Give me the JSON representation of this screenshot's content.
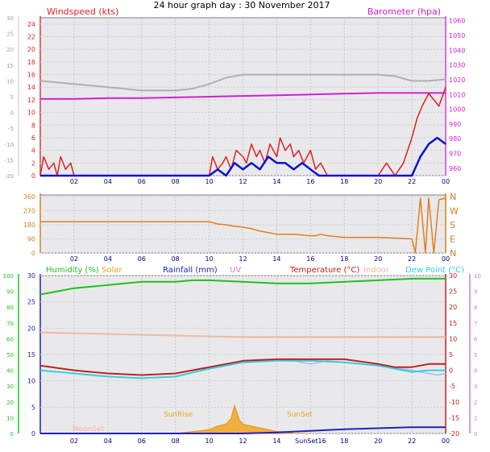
{
  "title": "24 hour graph day : 30 November 2017",
  "colors": {
    "wind": "#e02020",
    "gust": "#ff3030",
    "avgwind": "#1010d0",
    "baro": "#d020d0",
    "temp": "#c02020",
    "dew": "#30d0e0",
    "humidity": "#20c020",
    "solar": "#f0a020",
    "rain": "#2020c0",
    "uv": "#d080d0",
    "indoor": "#f0b8a0",
    "direction": "#e08020",
    "gray_series": "#b0b0b0"
  },
  "chart_data": [
    {
      "type": "line",
      "panel": "wind_baro",
      "title": "",
      "x_ticks": [
        "02",
        "04",
        "06",
        "08",
        "10",
        "12",
        "14",
        "16",
        "18",
        "20",
        "22",
        "00"
      ],
      "left_axis": {
        "label": "Windspeed (kts)",
        "ticks": [
          "0",
          "2",
          "4",
          "6",
          "8",
          "10",
          "12",
          "14",
          "16",
          "18",
          "20",
          "22",
          "24"
        ],
        "ylim": [
          0,
          25
        ]
      },
      "outer_left_axis": {
        "ticks": [
          "-20",
          "-15",
          "-10",
          "-5",
          "0",
          "5",
          "10",
          "15",
          "20",
          "25",
          "30"
        ],
        "ylim": [
          -20,
          30
        ]
      },
      "right_axis": {
        "label": "Barometer (hpa)",
        "ticks": [
          "960",
          "970",
          "980",
          "990",
          "1000",
          "1010",
          "1020",
          "1030",
          "1040",
          "1050",
          "1060"
        ],
        "ylim": [
          955,
          1062
        ]
      },
      "series": [
        {
          "name": "Barometer (hpa)",
          "axis": "right",
          "x": [
            0,
            2,
            4,
            6,
            8,
            10,
            12,
            14,
            16,
            18,
            20,
            22,
            24
          ],
          "values": [
            1007,
            1007,
            1007.5,
            1007.5,
            1008,
            1008.5,
            1009,
            1009.5,
            1010,
            1010.5,
            1011,
            1011,
            1011
          ]
        },
        {
          "name": "gray",
          "axis": "outer_left",
          "x": [
            0,
            2,
            4,
            6,
            8,
            9,
            10,
            11,
            12,
            14,
            16,
            18,
            20,
            21,
            22,
            23,
            24
          ],
          "values": [
            10,
            9,
            8,
            7,
            7,
            7.5,
            9,
            11,
            12,
            12,
            12,
            12,
            12,
            11.5,
            10,
            10,
            10.5
          ]
        },
        {
          "name": "Windspeed (kts)",
          "axis": "left",
          "x": [
            0,
            0.2,
            0.5,
            0.8,
            1,
            1.2,
            1.5,
            1.8,
            2,
            4,
            6,
            8,
            10,
            10.2,
            10.5,
            10.8,
            11,
            11.3,
            11.6,
            12,
            12.2,
            12.5,
            12.8,
            13,
            13.3,
            13.6,
            14,
            14.2,
            14.5,
            14.8,
            15,
            15.3,
            15.6,
            16,
            16.3,
            16.6,
            17,
            18,
            19,
            20,
            20.5,
            21,
            21.5,
            22,
            22.3,
            22.6,
            23,
            23.3,
            23.6,
            24
          ],
          "values": [
            0,
            3,
            1,
            2,
            0,
            3,
            1,
            2,
            0,
            0,
            0,
            0,
            0,
            3,
            1,
            2,
            3,
            1,
            4,
            3,
            2,
            5,
            3,
            4,
            2,
            5,
            3,
            6,
            4,
            5,
            3,
            4,
            2,
            4,
            1,
            2,
            0,
            0,
            0,
            0,
            2,
            0,
            2,
            6,
            9,
            11,
            13,
            12,
            11,
            14
          ]
        },
        {
          "name": "Average wind",
          "axis": "left",
          "x": [
            0,
            2,
            4,
            6,
            8,
            10,
            10.5,
            11,
            11.5,
            12,
            12.5,
            13,
            13.5,
            14,
            14.5,
            15,
            15.5,
            16,
            16.5,
            17,
            18,
            20,
            21,
            22,
            22.5,
            23,
            23.5,
            24
          ],
          "values": [
            0,
            0,
            0,
            0,
            0,
            0,
            1,
            0,
            2,
            1,
            2,
            1,
            3,
            2,
            2,
            1,
            2,
            1,
            0,
            0,
            0,
            0,
            0,
            0,
            3,
            5,
            6,
            5
          ]
        }
      ]
    },
    {
      "type": "line",
      "panel": "direction",
      "x_ticks": [
        "02",
        "04",
        "06",
        "08",
        "10",
        "12",
        "14",
        "16",
        "18",
        "20",
        "22",
        "00"
      ],
      "left_axis": {
        "ticks": [
          "0",
          "90",
          "180",
          "270",
          "360"
        ],
        "ylim": [
          0,
          360
        ]
      },
      "right_axis": {
        "ticks": [
          "N",
          "E",
          "S",
          "W",
          "N"
        ]
      },
      "series": [
        {
          "name": "Wind direction",
          "x": [
            0,
            10,
            10.5,
            11,
            11.5,
            12,
            12.5,
            13,
            13.5,
            14,
            15,
            16,
            16.3,
            16.6,
            17,
            18,
            20,
            22,
            22.2,
            22.5,
            22.8,
            23,
            23.3,
            23.6,
            24
          ],
          "values": [
            200,
            200,
            185,
            180,
            170,
            165,
            155,
            140,
            130,
            120,
            120,
            110,
            110,
            120,
            110,
            100,
            100,
            90,
            0,
            350,
            0,
            350,
            0,
            340,
            350
          ]
        }
      ]
    },
    {
      "type": "line",
      "panel": "temp_humidity",
      "x_ticks": [
        "02",
        "04",
        "06",
        "08",
        "10",
        "12",
        "14",
        "SunSet16",
        "18",
        "20",
        "22",
        "00"
      ],
      "legend": [
        "Humidity (%)",
        "Solar",
        "Rainfall (mm)",
        "UV",
        "Temperature (°C)",
        "Indoor",
        "Dew Point (°C)"
      ],
      "annotations": [
        "SunRise",
        "SunSet",
        "MoonSet"
      ],
      "left_axis_humidity": {
        "ticks": [
          "0",
          "10",
          "20",
          "30",
          "40",
          "50",
          "60",
          "70",
          "80",
          "90",
          "100"
        ],
        "ylim": [
          0,
          100
        ]
      },
      "left_axis_rain": {
        "ticks": [
          "0",
          "5",
          "10",
          "15",
          "20",
          "25",
          "30"
        ],
        "ylim": [
          0,
          30
        ]
      },
      "right_axis_temp": {
        "ticks": [
          "-20",
          "-15",
          "-10",
          "-5",
          "0",
          "5",
          "10",
          "15",
          "20",
          "25",
          "30"
        ],
        "ylim": [
          -20,
          30
        ]
      },
      "right_axis_uv": {
        "ticks": [
          "0",
          "1",
          "2",
          "3",
          "4",
          "5",
          "6",
          "7",
          "8",
          "9",
          "10"
        ],
        "ylim": [
          0,
          10
        ]
      },
      "series": [
        {
          "name": "Humidity (%)",
          "axis": "humidity",
          "x": [
            0,
            1,
            2,
            3,
            4,
            5,
            6,
            7,
            8,
            9,
            10,
            12,
            14,
            16,
            18,
            20,
            22,
            24
          ],
          "values": [
            88,
            90,
            92,
            93,
            94,
            95,
            96,
            96,
            96,
            97,
            97,
            96,
            95,
            95,
            96,
            97,
            98,
            98
          ]
        },
        {
          "name": "Indoor",
          "axis": "temp",
          "x": [
            0,
            4,
            8,
            12,
            16,
            20,
            24
          ],
          "values": [
            12,
            11.5,
            11,
            10.5,
            10.5,
            10.5,
            10.5
          ]
        },
        {
          "name": "Temperature (°C)",
          "axis": "temp",
          "x": [
            0,
            2,
            4,
            6,
            8,
            10,
            12,
            14,
            16,
            18,
            20,
            21,
            22,
            23,
            24
          ],
          "values": [
            1.5,
            0,
            -1,
            -1.5,
            -1,
            1,
            3,
            3.5,
            3.5,
            3.5,
            2,
            1,
            1,
            2,
            2
          ]
        },
        {
          "name": "Dew Point (°C)",
          "axis": "temp",
          "x": [
            0,
            2,
            4,
            6,
            8,
            10,
            12,
            14,
            16,
            18,
            20,
            21,
            22,
            23,
            24
          ],
          "values": [
            0,
            -1,
            -2,
            -2.5,
            -2,
            0.5,
            2.5,
            3,
            3,
            2.5,
            1.5,
            0.5,
            -0.5,
            0,
            0
          ]
        },
        {
          "name": "gray_lavender",
          "axis": "temp",
          "x": [
            14,
            15,
            16,
            17,
            18,
            20,
            22,
            22.5,
            23,
            23.5,
            24
          ],
          "values": [
            3,
            3,
            2,
            3,
            2.5,
            1.5,
            0,
            -0.5,
            -1,
            -1.5,
            -1
          ]
        },
        {
          "name": "Solar",
          "axis": "solar",
          "x": [
            8,
            9,
            10,
            10.5,
            11,
            11.3,
            11.5,
            11.8,
            12,
            12.5,
            13,
            13.5,
            14,
            14.5,
            15,
            16
          ],
          "values": [
            0,
            1,
            2,
            4,
            5,
            8,
            15,
            7,
            5,
            4,
            3,
            2,
            1,
            1,
            0,
            0
          ]
        },
        {
          "name": "Rainfall (mm)",
          "axis": "rain",
          "x": [
            0,
            10,
            12,
            14,
            16,
            18,
            20,
            22,
            24
          ],
          "values": [
            0,
            0,
            0,
            0.2,
            0.5,
            0.8,
            1,
            1.2,
            1.2
          ]
        }
      ]
    }
  ]
}
